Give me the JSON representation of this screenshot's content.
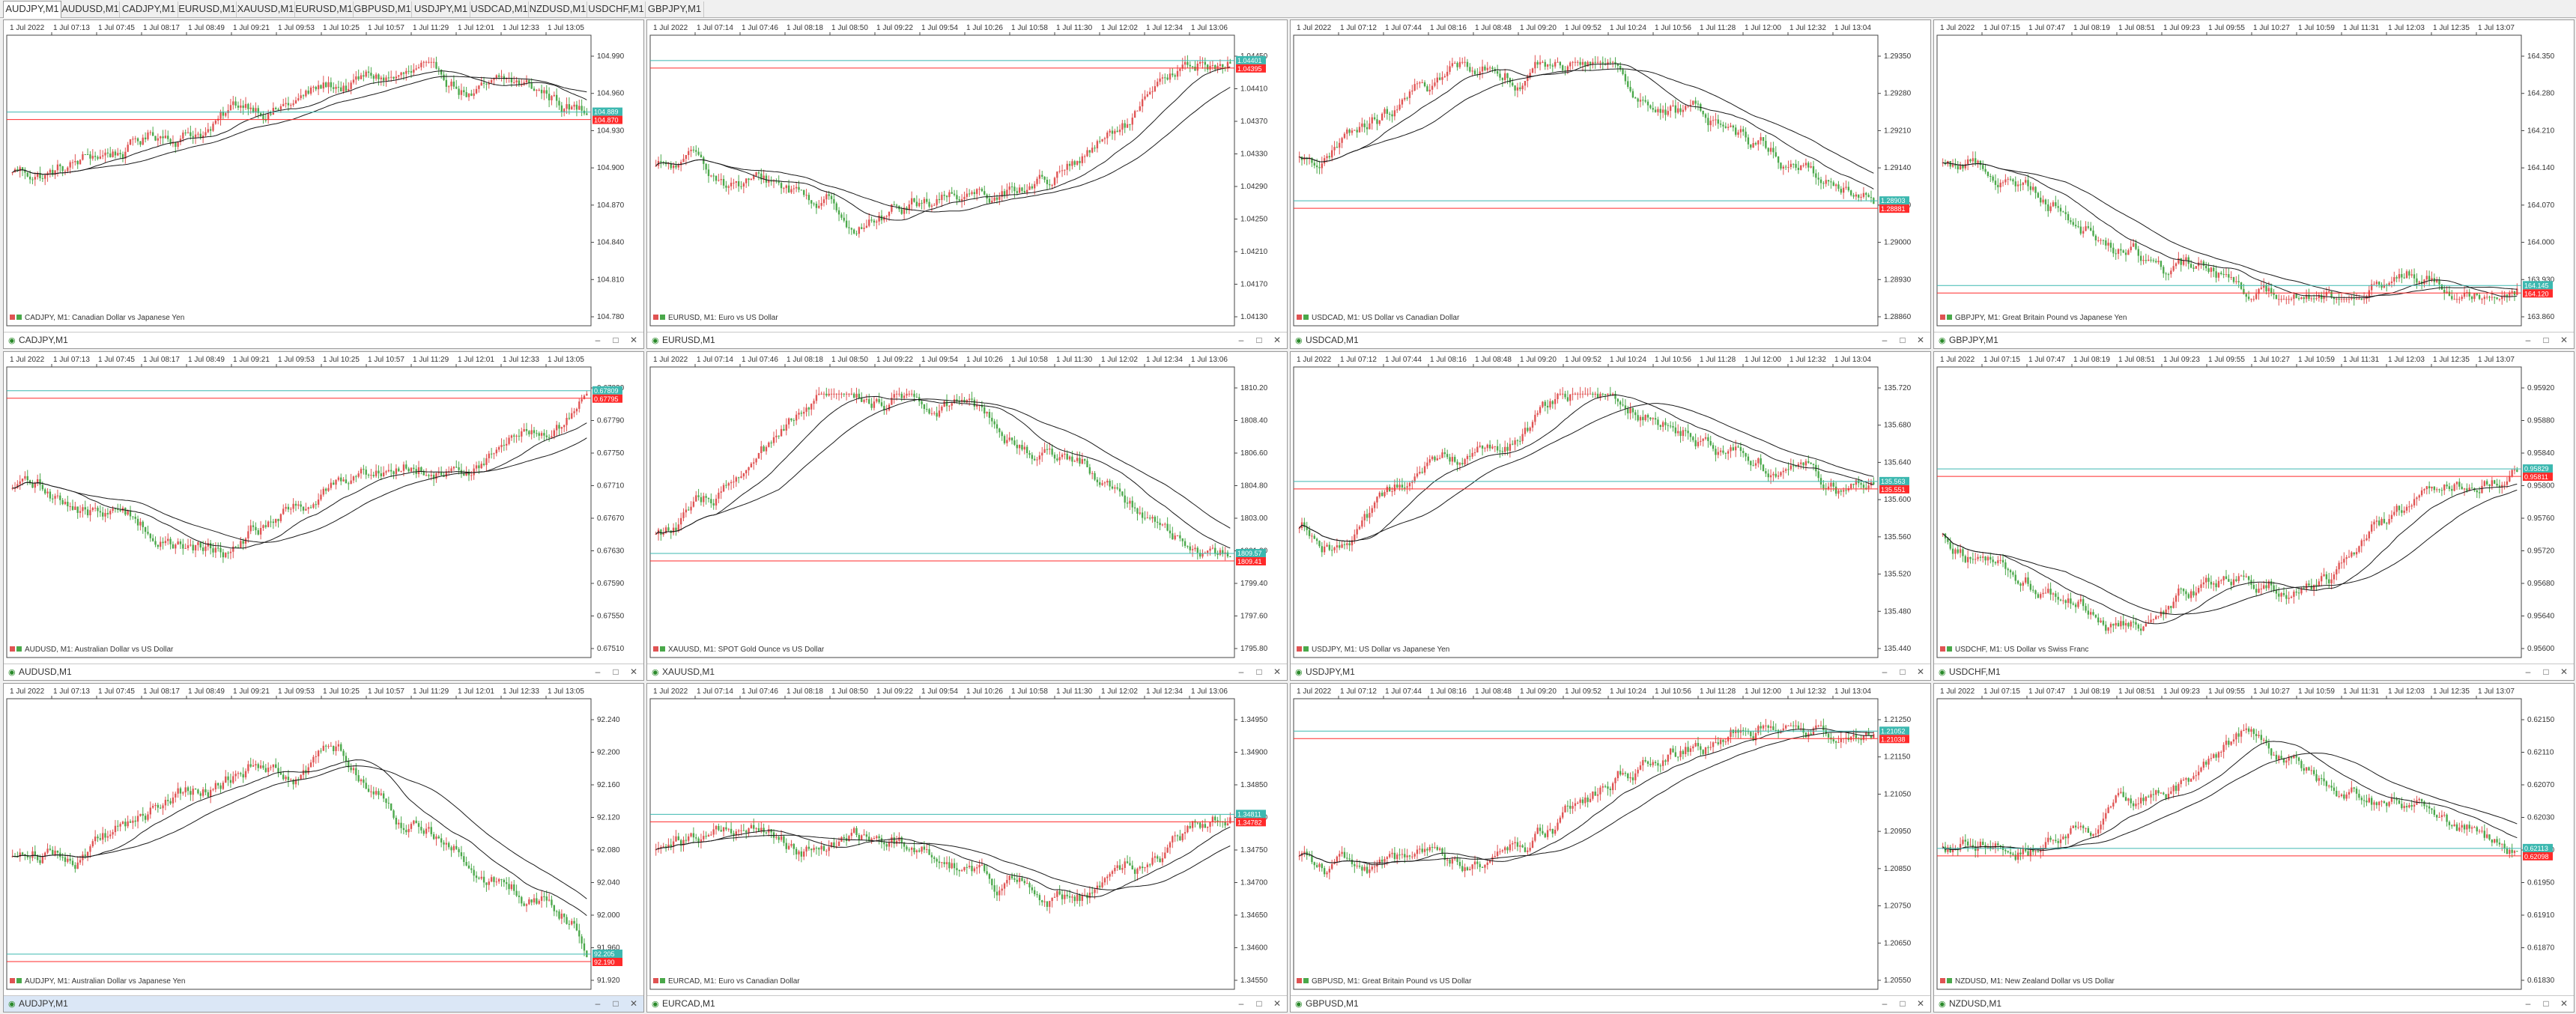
{
  "tabs": [
    "AUDJPY,M1",
    "AUDUSD,M1",
    "CADJPY,M1",
    "EURUSD,M1",
    "XAUUSD,M1",
    "EURUSD,M1",
    "GBPUSD,M1",
    "USDJPY,M1",
    "USDCAD,M1",
    "NZDUSD,M1",
    "USDCHF,M1",
    "GBPJPY,M1"
  ],
  "active_tab": 0,
  "windows": [
    {
      "title": "CADJPY,M1",
      "desc": "CADJPY, M1:  Canadian Dollar vs Japanese Yen",
      "date_label": "1 Jul 2022",
      "times": [
        "1 Jul 07:13",
        "1 Jul 07:45",
        "1 Jul 08:17",
        "1 Jul 08:49",
        "1 Jul 09:21",
        "1 Jul 09:53",
        "1 Jul 10:25",
        "1 Jul 10:57",
        "1 Jul 11:29",
        "1 Jul 12:01",
        "1 Jul 12:33",
        "1 Jul 13:05"
      ],
      "prices": [
        "104.990",
        "104.960",
        "104.930",
        "104.900",
        "104.870",
        "104.840",
        "104.810",
        "104.780"
      ],
      "bid": "104.870",
      "ask": "104.889"
    },
    {
      "title": "EURUSD,M1",
      "desc": "EURUSD, M1:  Euro vs US Dollar",
      "date_label": "1 Jul 2022",
      "times": [
        "1 Jul 07:14",
        "1 Jul 07:46",
        "1 Jul 08:18",
        "1 Jul 08:50",
        "1 Jul 09:22",
        "1 Jul 09:54",
        "1 Jul 10:26",
        "1 Jul 10:58",
        "1 Jul 11:30",
        "1 Jul 12:02",
        "1 Jul 12:34",
        "1 Jul 13:06"
      ],
      "prices": [
        "1.04450",
        "1.04410",
        "1.04370",
        "1.04330",
        "1.04290",
        "1.04250",
        "1.04210",
        "1.04170",
        "1.04130"
      ],
      "bid": "1.04395",
      "ask": "1.04401"
    },
    {
      "title": "USDCAD,M1",
      "desc": "USDCAD, M1:  US Dollar vs Canadian Dollar",
      "date_label": "1 Jul 2022",
      "times": [
        "1 Jul 07:12",
        "1 Jul 07:44",
        "1 Jul 08:16",
        "1 Jul 08:48",
        "1 Jul 09:20",
        "1 Jul 09:52",
        "1 Jul 10:24",
        "1 Jul 10:56",
        "1 Jul 11:28",
        "1 Jul 12:00",
        "1 Jul 12:32",
        "1 Jul 13:04"
      ],
      "prices": [
        "1.29350",
        "1.29280",
        "1.29210",
        "1.29140",
        "1.29070",
        "1.29000",
        "1.28930",
        "1.28860"
      ],
      "bid": "1.28881",
      "ask": "1.28903"
    },
    {
      "title": "GBPJPY,M1",
      "desc": "GBPJPY, M1:  Great Britain Pound vs Japanese Yen",
      "date_label": "1 Jul 2022",
      "times": [
        "1 Jul 07:15",
        "1 Jul 07:47",
        "1 Jul 08:19",
        "1 Jul 08:51",
        "1 Jul 09:23",
        "1 Jul 09:55",
        "1 Jul 10:27",
        "1 Jul 10:59",
        "1 Jul 11:31",
        "1 Jul 12:03",
        "1 Jul 12:35",
        "1 Jul 13:07"
      ],
      "prices": [
        "164.350",
        "164.280",
        "164.210",
        "164.140",
        "164.070",
        "164.000",
        "163.930",
        "163.860"
      ],
      "bid": "164.120",
      "ask": "164.145"
    },
    {
      "title": "AUDUSD,M1",
      "desc": "AUDUSD, M1:  Australian Dollar vs US Dollar",
      "date_label": "1 Jul 2022",
      "times": [
        "1 Jul 07:13",
        "1 Jul 07:45",
        "1 Jul 08:17",
        "1 Jul 08:49",
        "1 Jul 09:21",
        "1 Jul 09:53",
        "1 Jul 10:25",
        "1 Jul 10:57",
        "1 Jul 11:29",
        "1 Jul 12:01",
        "1 Jul 12:33",
        "1 Jul 13:05"
      ],
      "prices": [
        "0.67830",
        "0.67790",
        "0.67750",
        "0.67710",
        "0.67670",
        "0.67630",
        "0.67590",
        "0.67550",
        "0.67510"
      ],
      "bid": "0.67795",
      "ask": "0.67809"
    },
    {
      "title": "XAUUSD,M1",
      "desc": "XAUUSD, M1:  SPOT Gold Ounce vs US Dollar",
      "date_label": "1 Jul 2022",
      "times": [
        "1 Jul 07:14",
        "1 Jul 07:46",
        "1 Jul 08:18",
        "1 Jul 08:50",
        "1 Jul 09:22",
        "1 Jul 09:54",
        "1 Jul 10:26",
        "1 Jul 10:58",
        "1 Jul 11:30",
        "1 Jul 12:02",
        "1 Jul 12:34",
        "1 Jul 13:06"
      ],
      "prices": [
        "1810.20",
        "1808.40",
        "1806.60",
        "1804.80",
        "1803.00",
        "1801.20",
        "1799.40",
        "1797.60",
        "1795.80"
      ],
      "bid": "1809.41",
      "ask": "1809.57"
    },
    {
      "title": "USDJPY,M1",
      "desc": "USDJPY, M1:  US Dollar vs Japanese Yen",
      "date_label": "1 Jul 2022",
      "times": [
        "1 Jul 07:12",
        "1 Jul 07:44",
        "1 Jul 08:16",
        "1 Jul 08:48",
        "1 Jul 09:20",
        "1 Jul 09:52",
        "1 Jul 10:24",
        "1 Jul 10:56",
        "1 Jul 11:28",
        "1 Jul 12:00",
        "1 Jul 12:32",
        "1 Jul 13:04"
      ],
      "prices": [
        "135.720",
        "135.680",
        "135.640",
        "135.600",
        "135.560",
        "135.520",
        "135.480",
        "135.440"
      ],
      "bid": "135.551",
      "ask": "135.563"
    },
    {
      "title": "USDCHF,M1",
      "desc": "USDCHF, M1:  US Dollar vs Swiss Franc",
      "date_label": "1 Jul 2022",
      "times": [
        "1 Jul 07:15",
        "1 Jul 07:47",
        "1 Jul 08:19",
        "1 Jul 08:51",
        "1 Jul 09:23",
        "1 Jul 09:55",
        "1 Jul 10:27",
        "1 Jul 10:59",
        "1 Jul 11:31",
        "1 Jul 12:03",
        "1 Jul 12:35",
        "1 Jul 13:07"
      ],
      "prices": [
        "0.95920",
        "0.95880",
        "0.95840",
        "0.95800",
        "0.95760",
        "0.95720",
        "0.95680",
        "0.95640",
        "0.95600"
      ],
      "bid": "0.95811",
      "ask": "0.95829"
    },
    {
      "title": "AUDJPY,M1",
      "desc": "AUDJPY, M1:  Australian Dollar vs Japanese Yen",
      "date_label": "1 Jul 2022",
      "times": [
        "1 Jul 07:13",
        "1 Jul 07:45",
        "1 Jul 08:17",
        "1 Jul 08:49",
        "1 Jul 09:21",
        "1 Jul 09:53",
        "1 Jul 10:25",
        "1 Jul 10:57",
        "1 Jul 11:29",
        "1 Jul 12:01",
        "1 Jul 12:33",
        "1 Jul 13:05"
      ],
      "prices": [
        "92.240",
        "92.200",
        "92.160",
        "92.120",
        "92.080",
        "92.040",
        "92.000",
        "91.960",
        "91.920"
      ],
      "bid": "92.190",
      "ask": "92.205"
    },
    {
      "title": "EURCAD,M1",
      "desc": "EURCAD, M1:  Euro vs Canadian Dollar",
      "date_label": "1 Jul 2022",
      "times": [
        "1 Jul 07:14",
        "1 Jul 07:46",
        "1 Jul 08:18",
        "1 Jul 08:50",
        "1 Jul 09:22",
        "1 Jul 09:54",
        "1 Jul 10:26",
        "1 Jul 10:58",
        "1 Jul 11:30",
        "1 Jul 12:02",
        "1 Jul 12:34",
        "1 Jul 13:06"
      ],
      "prices": [
        "1.34950",
        "1.34900",
        "1.34850",
        "1.34800",
        "1.34750",
        "1.34700",
        "1.34650",
        "1.34600",
        "1.34550"
      ],
      "bid": "1.34782",
      "ask": "1.34811"
    },
    {
      "title": "GBPUSD,M1",
      "desc": "GBPUSD, M1:  Great Britain Pound vs US Dollar",
      "date_label": "1 Jul 2022",
      "times": [
        "1 Jul 07:12",
        "1 Jul 07:44",
        "1 Jul 08:16",
        "1 Jul 08:48",
        "1 Jul 09:20",
        "1 Jul 09:52",
        "1 Jul 10:24",
        "1 Jul 10:56",
        "1 Jul 11:28",
        "1 Jul 12:00",
        "1 Jul 12:32",
        "1 Jul 13:04"
      ],
      "prices": [
        "1.21250",
        "1.21150",
        "1.21050",
        "1.20950",
        "1.20850",
        "1.20750",
        "1.20650",
        "1.20550"
      ],
      "bid": "1.21038",
      "ask": "1.21052"
    },
    {
      "title": "NZDUSD,M1",
      "desc": "NZDUSD, M1:  New Zealand Dollar vs US Dollar",
      "date_label": "1 Jul 2022",
      "times": [
        "1 Jul 07:15",
        "1 Jul 07:47",
        "1 Jul 08:19",
        "1 Jul 08:51",
        "1 Jul 09:23",
        "1 Jul 09:55",
        "1 Jul 10:27",
        "1 Jul 10:59",
        "1 Jul 11:31",
        "1 Jul 12:03",
        "1 Jul 12:35",
        "1 Jul 13:07"
      ],
      "prices": [
        "0.62150",
        "0.62110",
        "0.62070",
        "0.62030",
        "0.61990",
        "0.61950",
        "0.61910",
        "0.61870",
        "0.61830"
      ],
      "bid": "0.62098",
      "ask": "0.62113"
    }
  ],
  "active_window": 8,
  "colors": {
    "bull": "#e05353",
    "bear": "#4aa84a",
    "bid_line": "#ff2a2a",
    "ask_line": "#3cb8b0",
    "ma": "#1a1a1a"
  }
}
